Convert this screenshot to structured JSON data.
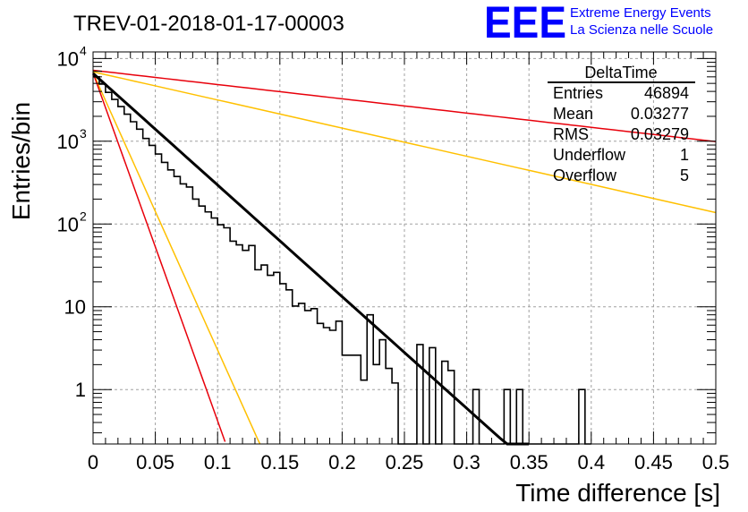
{
  "header": {
    "title": "TREV-01-2018-01-17-00003",
    "logo_text": "EEE",
    "logo_line1": "Extreme Energy Events",
    "logo_line2": "La Scienza nelle Scuole"
  },
  "stats": {
    "name": "DeltaTime",
    "rows": [
      {
        "label": "Entries",
        "value": "46894"
      },
      {
        "label": "Mean",
        "value": "0.03277"
      },
      {
        "label": "RMS",
        "value": "0.03279"
      },
      {
        "label": "Underflow",
        "value": "1"
      },
      {
        "label": "Overflow",
        "value": "5"
      }
    ]
  },
  "colors": {
    "histogram": "#000000",
    "fit": "#000000",
    "red_lines": "#e8000b",
    "orange_lines": "#ffc000",
    "grid": "#a0a0a0",
    "logo": "#0000ff"
  },
  "chart_data": {
    "type": "line",
    "title": "TREV-01-2018-01-17-00003",
    "xlabel": "Time difference [s]",
    "ylabel": "Entries/bin",
    "x_scale": "linear",
    "y_scale": "log",
    "xlim": [
      0,
      0.5
    ],
    "ylim": [
      0.22,
      12000
    ],
    "grid": true,
    "x_ticks": [
      {
        "value": 0,
        "label": "0"
      },
      {
        "value": 0.05,
        "label": "0.05"
      },
      {
        "value": 0.1,
        "label": "0.1"
      },
      {
        "value": 0.15,
        "label": "0.15"
      },
      {
        "value": 0.2,
        "label": "0.2"
      },
      {
        "value": 0.25,
        "label": "0.25"
      },
      {
        "value": 0.3,
        "label": "0.3"
      },
      {
        "value": 0.35,
        "label": "0.35"
      },
      {
        "value": 0.4,
        "label": "0.4"
      },
      {
        "value": 0.45,
        "label": "0.45"
      },
      {
        "value": 0.5,
        "label": "0.5"
      }
    ],
    "y_ticks": [
      {
        "value": 1,
        "label": "1"
      },
      {
        "value": 10,
        "label": "10"
      },
      {
        "value": 100,
        "label": "10",
        "exp": "2"
      },
      {
        "value": 1000,
        "label": "10",
        "exp": "3"
      },
      {
        "value": 10000,
        "label": "10",
        "exp": "4"
      }
    ],
    "histogram": {
      "bin_width": 0.005,
      "counts": [
        6000,
        4900,
        3900,
        3200,
        2620,
        2120,
        1720,
        1400,
        1080,
        890,
        700,
        555,
        450,
        375,
        305,
        280,
        200,
        165,
        140,
        118,
        98,
        90,
        62,
        56,
        48,
        55,
        28,
        32,
        24,
        26,
        19,
        16,
        10.2,
        11,
        9,
        9.5,
        6.3,
        5.6,
        5.2,
        6.7,
        2.6,
        2.6,
        2.6,
        1.3,
        8,
        2,
        4,
        1.8,
        1.2,
        0,
        0,
        0,
        3.5,
        0,
        3.2,
        0,
        2.2,
        1.7,
        0,
        0,
        0,
        1,
        0,
        0,
        0,
        0,
        1,
        0,
        1,
        0,
        0,
        0,
        0,
        0,
        0,
        0,
        0,
        0,
        1,
        0
      ]
    },
    "series": [
      {
        "kind": "fit",
        "color": "#000000",
        "width": 3,
        "x0": 0,
        "y0": 6600,
        "tau": 0.0322,
        "x_end": 0.35
      },
      {
        "kind": "model",
        "color": "#e8000b",
        "width": 1.5,
        "x0": 0,
        "y0": 7200,
        "tau": 0.252,
        "x_end": 0.5
      },
      {
        "kind": "model",
        "color": "#ffc000",
        "width": 1.5,
        "x0": 0,
        "y0": 6900,
        "tau": 0.1277,
        "x_end": 0.5
      },
      {
        "kind": "model",
        "color": "#ffc000",
        "width": 1.5,
        "x0": 0,
        "y0": 6700,
        "tau": 0.01297,
        "x_end": 0.134
      },
      {
        "kind": "model",
        "color": "#e8000b",
        "width": 1.5,
        "x0": 0,
        "y0": 6700,
        "tau": 0.01033,
        "x_end": 0.106
      }
    ]
  }
}
